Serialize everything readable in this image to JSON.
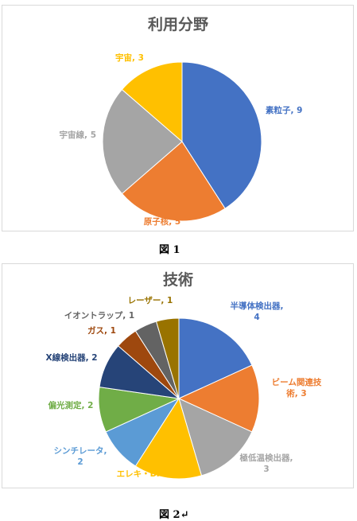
{
  "chart_data": [
    {
      "type": "pie",
      "title": "利用分野",
      "categories": [
        "素粒子",
        "原子核",
        "宇宙線",
        "宇宙"
      ],
      "values": [
        9,
        5,
        5,
        3
      ],
      "labels": [
        "素粒子, 9",
        "原子核, 5",
        "宇宙線, 5",
        "宇宙, 3"
      ],
      "colors": [
        "#4472C4",
        "#ED7D31",
        "#A5A5A5",
        "#FFC000"
      ],
      "label_colors": [
        "#4472C4",
        "#ED7D31",
        "#A5A5A5",
        "#FFC000"
      ],
      "legend": "none"
    },
    {
      "type": "pie",
      "title": "技術",
      "categories": [
        "半導体検出器",
        "ビーム関連技術",
        "極低温検出器",
        "エレキ・DAQ",
        "シンチレータ",
        "偏光測定",
        "X線検出器",
        "ガス",
        "イオントラップ",
        "レーザー"
      ],
      "values": [
        4,
        3,
        3,
        3,
        2,
        2,
        2,
        1,
        1,
        1
      ],
      "labels": [
        [
          "半導体検出器,",
          "4"
        ],
        [
          "ビーム関連技",
          "術, 3"
        ],
        [
          "極低温検出器,",
          "3"
        ],
        [
          "エレキ・DAQ, 3"
        ],
        [
          "シンチレータ,",
          "2"
        ],
        [
          "偏光測定, 2"
        ],
        [
          "X線検出器, 2"
        ],
        [
          "ガス, 1"
        ],
        [
          "イオントラップ, 1"
        ],
        [
          "レーザー, 1"
        ]
      ],
      "colors": [
        "#4472C4",
        "#ED7D31",
        "#A5A5A5",
        "#FFC000",
        "#5B9BD5",
        "#70AD47",
        "#264478",
        "#9E480E",
        "#636363",
        "#997300"
      ],
      "label_colors": [
        "#4472C4",
        "#ED7D31",
        "#A5A5A5",
        "#FFC000",
        "#5B9BD5",
        "#70AD47",
        "#264478",
        "#9E480E",
        "#636363",
        "#997300"
      ],
      "legend": "none"
    }
  ],
  "captions": {
    "fig1": "図 1",
    "fig2": "図 2↵"
  }
}
